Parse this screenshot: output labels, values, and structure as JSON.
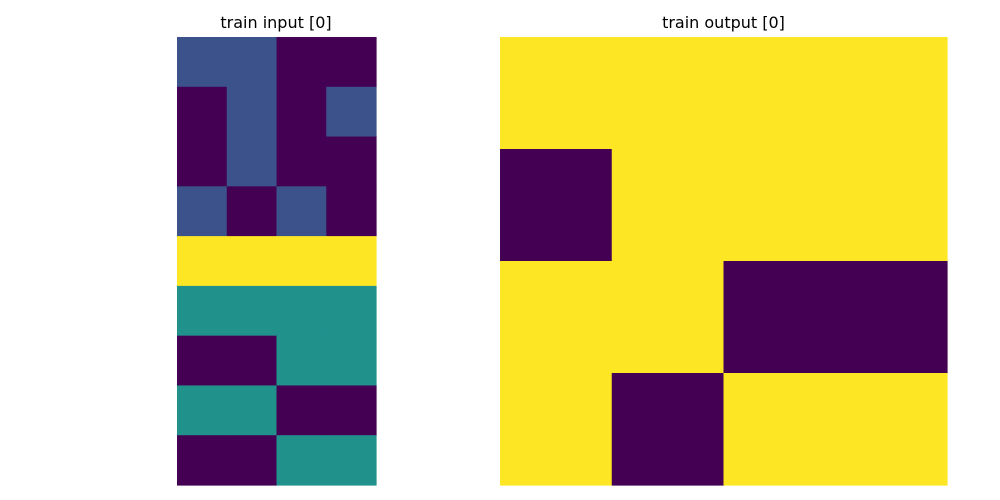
{
  "chart_data": [
    {
      "type": "heatmap",
      "title": "train input [0]",
      "rows": 9,
      "cols": 4,
      "cells": [
        [
          1,
          1,
          0,
          0
        ],
        [
          0,
          1,
          0,
          1
        ],
        [
          0,
          1,
          0,
          0
        ],
        [
          1,
          0,
          1,
          0
        ],
        [
          4,
          4,
          4,
          4
        ],
        [
          2,
          2,
          2,
          2
        ],
        [
          0,
          0,
          2,
          2
        ],
        [
          2,
          2,
          0,
          0
        ],
        [
          0,
          0,
          2,
          2
        ]
      ]
    },
    {
      "type": "heatmap",
      "title": "train output [0]",
      "rows": 4,
      "cols": 4,
      "cells": [
        [
          4,
          4,
          4,
          4
        ],
        [
          0,
          4,
          4,
          4
        ],
        [
          4,
          4,
          0,
          0
        ],
        [
          4,
          0,
          4,
          4
        ]
      ]
    }
  ],
  "colors": {
    "0": "#440154",
    "1": "#3b528b",
    "2": "#21918c",
    "4": "#fde725"
  }
}
